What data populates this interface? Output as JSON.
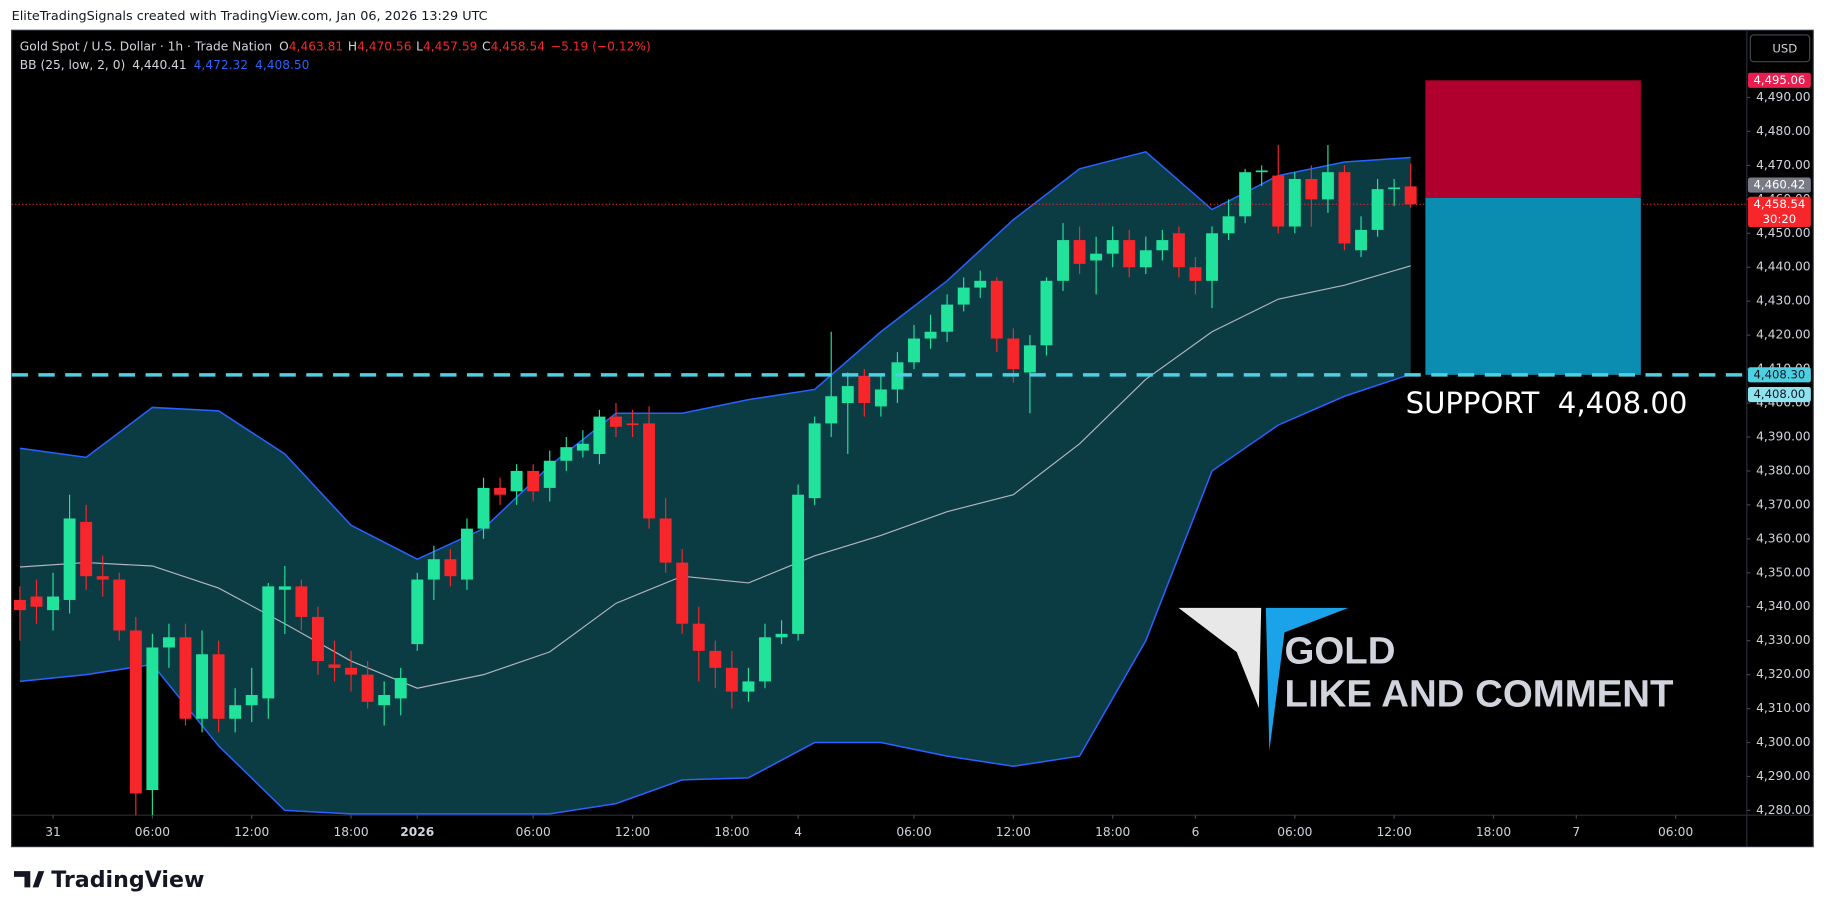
{
  "header": {
    "credit": "EliteTradingSignals created with TradingView.com, Jan 06, 2026 13:29 UTC",
    "logo": "TradingView",
    "currency": "USD"
  },
  "watermark": {
    "line1": "GOLD",
    "line2": "LIKE AND COMMENT",
    "colors": {
      "line1": "#ffffff",
      "line2": "#26e6a2"
    }
  },
  "chart_data": {
    "type": "candlestick",
    "title": "Gold Spot / U.S. Dollar · 1h · Trade Nation",
    "legend": [
      {
        "key": "O",
        "value": "4,463.81"
      },
      {
        "key": "H",
        "value": "4,470.56"
      },
      {
        "key": "L",
        "value": "4,457.59"
      },
      {
        "key": "C",
        "value": "4,458.54"
      }
    ],
    "change": "−5.19 (−0.12%)",
    "colors": {
      "up": "#22e39b",
      "down": "#f7262b"
    },
    "open": [
      4342,
      4343,
      4339,
      4342,
      4365,
      4349,
      4348,
      4333,
      4286,
      4328,
      4331,
      4307,
      4326,
      4307,
      4311,
      4313,
      4345,
      4346,
      4337,
      4323,
      4322,
      4320,
      4311,
      4313,
      4329,
      4348,
      4354,
      4348,
      4363,
      4375,
      4374,
      4380,
      4375,
      4383,
      4386,
      4385,
      4396,
      4394,
      4394,
      4366,
      4353,
      4335,
      4327,
      4322,
      4315,
      4318,
      4331,
      4332,
      4372,
      4394,
      4400,
      4408,
      4399,
      4404,
      4412,
      4419,
      4421,
      4429,
      4434,
      4436,
      4419,
      4409,
      4417,
      4436,
      4448,
      4442,
      4444,
      4448,
      4440,
      4445,
      4450,
      4440,
      4436,
      4450,
      4455,
      4468,
      4467,
      4452,
      4466,
      4460,
      4468,
      4445,
      4451,
      4463,
      4463.81
    ],
    "high": [
      4346,
      4348,
      4350,
      4373,
      4370,
      4355,
      4350,
      4337,
      4332,
      4335,
      4335,
      4333,
      4330,
      4316,
      4322,
      4347,
      4352,
      4348,
      4340,
      4330,
      4327,
      4324,
      4318,
      4322,
      4350,
      4358,
      4357,
      4366,
      4378,
      4378,
      4382,
      4382,
      4386,
      4390,
      4392,
      4398,
      4400,
      4398,
      4399,
      4372,
      4357,
      4340,
      4330,
      4327,
      4322,
      4335,
      4336,
      4376,
      4396,
      4421,
      4409,
      4410,
      4408,
      4415,
      4423,
      4426,
      4432,
      4437,
      4439,
      4437,
      4422,
      4420,
      4437,
      4453,
      4452,
      4449,
      4452,
      4451,
      4449,
      4451,
      4452,
      4443,
      4452,
      4460,
      4469,
      4470,
      4476,
      4468,
      4470,
      4476,
      4470,
      4455,
      4466,
      4466,
      4470.56
    ],
    "low": [
      4330,
      4335,
      4333,
      4338,
      4345,
      4343,
      4330,
      4278,
      4278,
      4322,
      4305,
      4303,
      4303,
      4303,
      4306,
      4307,
      4332,
      4333,
      4320,
      4318,
      4315,
      4310,
      4305,
      4308,
      4327,
      4342,
      4346,
      4345,
      4360,
      4370,
      4370,
      4371,
      4371,
      4380,
      4384,
      4382,
      4390,
      4390,
      4363,
      4350,
      4332,
      4318,
      4316,
      4310,
      4312,
      4316,
      4329,
      4330,
      4370,
      4390,
      4385,
      4396,
      4396,
      4400,
      4410,
      4416,
      4418,
      4427,
      4431,
      4415,
      4406,
      4397,
      4414,
      4433,
      4438,
      4432,
      4440,
      4437,
      4438,
      4442,
      4437,
      4432,
      4428,
      4448,
      4453,
      4464,
      4450,
      4450,
      4452,
      4456,
      4445,
      4443,
      4449,
      4458,
      4457.59
    ],
    "close": [
      4339,
      4340,
      4343,
      4366,
      4349,
      4348,
      4333,
      4285,
      4328,
      4331,
      4307,
      4326,
      4307,
      4311,
      4314,
      4346,
      4346,
      4337,
      4324,
      4322,
      4320,
      4312,
      4314,
      4319,
      4348,
      4354,
      4349,
      4363,
      4375,
      4373,
      4380,
      4374,
      4383,
      4387,
      4388,
      4396,
      4393,
      4393.5,
      4366,
      4353,
      4335,
      4327,
      4322,
      4315,
      4318,
      4331,
      4332,
      4373,
      4394,
      4402,
      4405,
      4400,
      4404,
      4412,
      4419,
      4421,
      4429,
      4434,
      4436,
      4419,
      4410,
      4417,
      4436,
      4448,
      4441,
      4444,
      4448,
      4440,
      4445,
      4448,
      4440,
      4436,
      4450,
      4455,
      4468,
      4468.5,
      4452,
      4466,
      4460,
      4468,
      4447,
      4451,
      4463,
      4463.5,
      4458.54
    ],
    "bands": {
      "label": "BB (25, low, 2, 0)",
      "value_labels": [
        "4,440.41",
        "4,472.32",
        "4,408.50"
      ],
      "x": [
        0,
        4,
        8,
        12,
        16,
        20,
        24,
        28,
        32,
        36,
        40,
        44,
        48,
        52,
        56,
        60,
        64,
        68,
        72,
        76,
        80,
        84
      ],
      "upper": [
        4386.7,
        4384,
        4398.7,
        4397.7,
        4385,
        4364,
        4354,
        4363,
        4381.5,
        4397,
        4397,
        4401,
        4404,
        4421,
        4436,
        4454,
        4469,
        4474,
        4457,
        4467,
        4471,
        4472.32
      ],
      "basis": [
        4351.7,
        4353,
        4352,
        4345.5,
        4335,
        4324,
        4316,
        4320,
        4326.7,
        4341,
        4349,
        4347,
        4355,
        4361,
        4368,
        4373,
        4388,
        4407,
        4421,
        4430.6,
        4434.7,
        4440.41
      ],
      "lower": [
        4318,
        4320,
        4323,
        4299,
        4280,
        4279,
        4279,
        4279,
        4279,
        4282,
        4289,
        4289.6,
        4300,
        4300,
        4296,
        4293,
        4296,
        4330,
        4380,
        4393.5,
        4402,
        4408.5
      ],
      "colors": {
        "basis": "#b2b5be",
        "upper": "#2962ff",
        "lower": "#2962ff",
        "fill": "#0b3c44"
      }
    },
    "xlim": [
      -0.5,
      104.3
    ],
    "xticks": [
      {
        "value": 2,
        "label": "31"
      },
      {
        "value": 8,
        "label": "06:00"
      },
      {
        "value": 14,
        "label": "12:00"
      },
      {
        "value": 20,
        "label": "18:00"
      },
      {
        "value": 24,
        "label": "2026",
        "bold": true
      },
      {
        "value": 31,
        "label": "06:00"
      },
      {
        "value": 37,
        "label": "12:00"
      },
      {
        "value": 43,
        "label": "18:00"
      },
      {
        "value": 47,
        "label": "4"
      },
      {
        "value": 54,
        "label": "06:00"
      },
      {
        "value": 60,
        "label": "12:00"
      },
      {
        "value": 66,
        "label": "18:00"
      },
      {
        "value": 71,
        "label": "6"
      },
      {
        "value": 77,
        "label": "06:00"
      },
      {
        "value": 83,
        "label": "12:00"
      },
      {
        "value": 89,
        "label": "18:00"
      },
      {
        "value": 94,
        "label": "7"
      },
      {
        "value": 100,
        "label": "06:00"
      }
    ],
    "ylim": [
      4278.6,
      4509.8
    ],
    "yticks": [
      {
        "value": 4280,
        "label": "4,280.00"
      },
      {
        "value": 4290,
        "label": "4,290.00"
      },
      {
        "value": 4300,
        "label": "4,300.00"
      },
      {
        "value": 4310,
        "label": "4,310.00"
      },
      {
        "value": 4320,
        "label": "4,320.00"
      },
      {
        "value": 4330,
        "label": "4,330.00"
      },
      {
        "value": 4340,
        "label": "4,340.00"
      },
      {
        "value": 4350,
        "label": "4,350.00"
      },
      {
        "value": 4360,
        "label": "4,360.00"
      },
      {
        "value": 4370,
        "label": "4,370.00"
      },
      {
        "value": 4380,
        "label": "4,380.00"
      },
      {
        "value": 4390,
        "label": "4,390.00"
      },
      {
        "value": 4400,
        "label": "4,400.00"
      },
      {
        "value": 4410,
        "label": "4,410.00"
      },
      {
        "value": 4420,
        "label": "4,420.00"
      },
      {
        "value": 4430,
        "label": "4,430.00"
      },
      {
        "value": 4440,
        "label": "4,440.00"
      },
      {
        "value": 4450,
        "label": "4,450.00"
      },
      {
        "value": 4460,
        "label": "4,460.00"
      },
      {
        "value": 4470,
        "label": "4,470.00"
      },
      {
        "value": 4480,
        "label": "4,480.00"
      },
      {
        "value": 4490,
        "label": "4,490.00"
      }
    ],
    "grid": false,
    "last_price": {
      "value": 4458.54,
      "label": "4,458.54",
      "countdown": "30:20",
      "color": "#f7262b"
    },
    "position": {
      "stop": {
        "value": 4495.06,
        "label": "4,495.06",
        "color": "#e91e4f",
        "fill": "#b0002e"
      },
      "entry": {
        "value": 4460.42,
        "label": "4,460.42",
        "color": "#787b86"
      },
      "target": {
        "value": 4408.3,
        "label": "4,408.30",
        "color": "#4dd0e1",
        "fill": "#0a8db0"
      }
    },
    "support": {
      "value": 4408,
      "label": "4,408.00",
      "annotation": "SUPPORT  4,408.00",
      "color": "#8fe3ef"
    }
  }
}
